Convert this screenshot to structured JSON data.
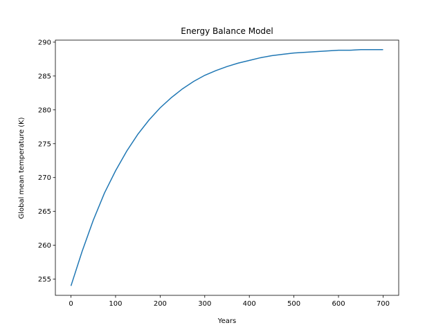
{
  "chart_data": {
    "type": "line",
    "title": "Energy Balance Model",
    "xlabel": "Years",
    "ylabel": "Global mean temperature (K)",
    "xlim": [
      -35,
      735
    ],
    "ylim": [
      252.6,
      290.3
    ],
    "xticks": [
      0,
      100,
      200,
      300,
      400,
      500,
      600,
      700
    ],
    "yticks": [
      255,
      260,
      265,
      270,
      275,
      280,
      285,
      290
    ],
    "grid": false,
    "series": [
      {
        "color": "#1f77b4",
        "x": [
          0,
          25,
          50,
          75,
          100,
          125,
          150,
          175,
          200,
          225,
          250,
          275,
          300,
          325,
          350,
          375,
          400,
          425,
          450,
          475,
          500,
          525,
          550,
          575,
          600,
          625,
          650,
          675,
          700
        ],
        "values": [
          254.0,
          259.1,
          263.7,
          267.7,
          271.0,
          273.9,
          276.4,
          278.5,
          280.3,
          281.8,
          283.1,
          284.2,
          285.1,
          285.8,
          286.4,
          286.9,
          287.3,
          287.7,
          288.0,
          288.2,
          288.4,
          288.5,
          288.6,
          288.7,
          288.8,
          288.8,
          288.9,
          288.9,
          288.9
        ]
      }
    ]
  }
}
